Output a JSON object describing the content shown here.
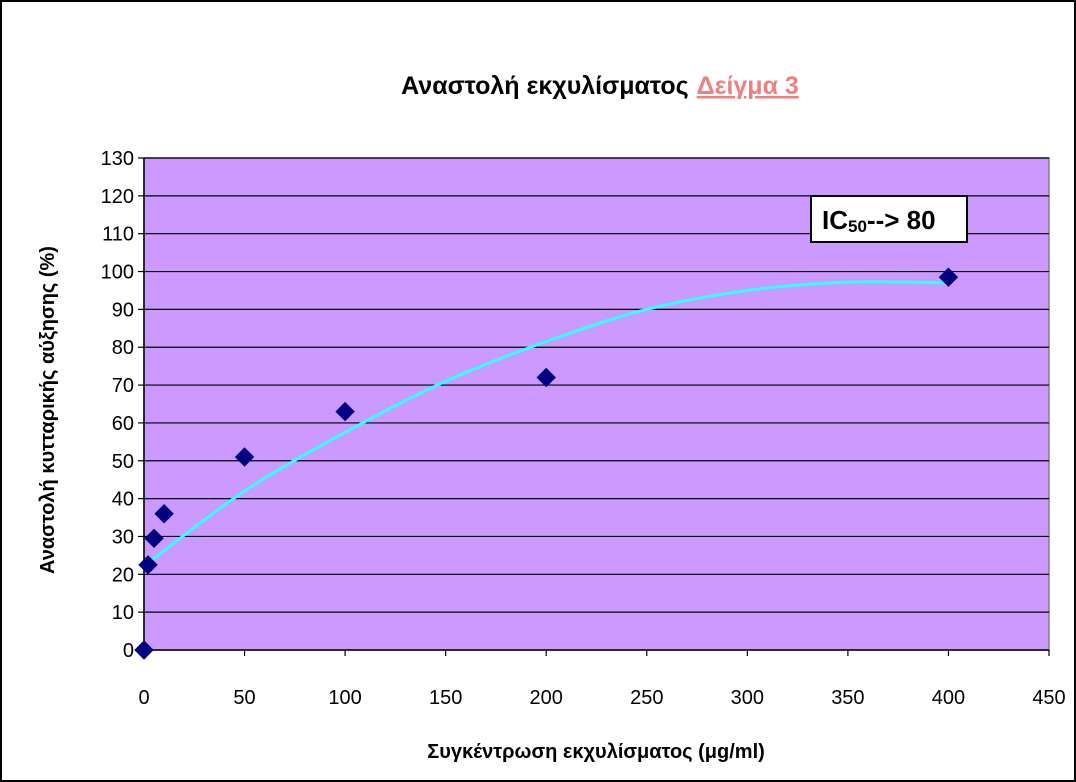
{
  "chart_data": {
    "type": "scatter",
    "title": "Αναστολή εκχυλίσματος",
    "title_highlight": "Δείγμα 3",
    "xlabel": "Συγκέντρωση εκχυλίσματος (μg/ml)",
    "ylabel": "Αναστολή κυτταρικής αύξησης (%)",
    "xlim": [
      0,
      450
    ],
    "ylim": [
      0,
      130
    ],
    "x_ticks": [
      0,
      50,
      100,
      150,
      200,
      250,
      300,
      350,
      400,
      450
    ],
    "y_ticks": [
      0,
      10,
      20,
      30,
      40,
      50,
      60,
      70,
      80,
      90,
      100,
      110,
      120,
      130
    ],
    "grid": "horizontal",
    "series": [
      {
        "x": [
          0,
          2,
          5,
          10,
          50,
          100,
          200,
          400
        ],
        "y": [
          0,
          22.5,
          29.5,
          36,
          51,
          63,
          72,
          98.5
        ],
        "marker": "diamond",
        "color": "#000080"
      }
    ],
    "trendline": {
      "type": "polynomial",
      "color": "#33ffff",
      "x": [
        2,
        50,
        100,
        150,
        200,
        250,
        300,
        350,
        400
      ],
      "y": [
        23,
        42,
        57.5,
        71,
        81.5,
        90,
        95,
        97.2,
        97
      ]
    },
    "annotation": {
      "prefix": "IC",
      "subscript": "50",
      "suffix": "--> 80"
    },
    "colors": {
      "plot_background": "#cc99ff",
      "marker": "#000080",
      "trendline": "#33ffff",
      "title_highlight": "#f08080"
    }
  }
}
